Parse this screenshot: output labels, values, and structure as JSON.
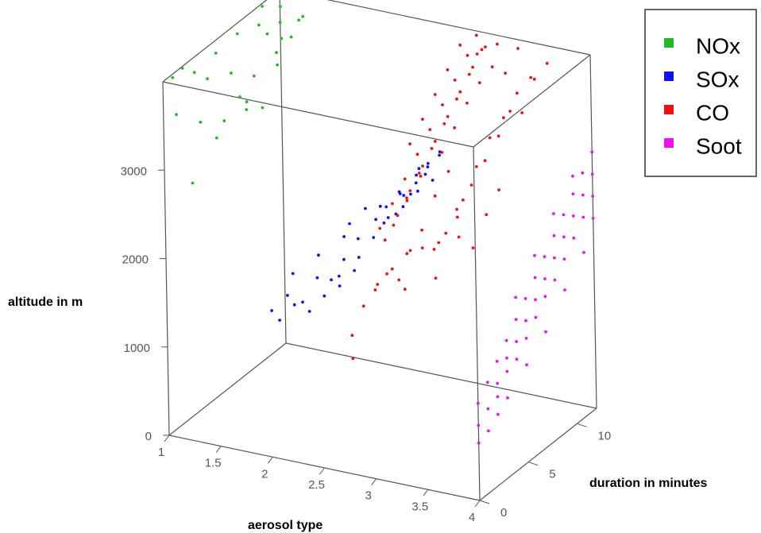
{
  "chart_data": {
    "type": "scatter",
    "projection": "3d",
    "xlabel": "aerosol type",
    "ylabel": "duration in minutes",
    "zlabel": "altitude in m",
    "xlim": [
      1,
      4
    ],
    "ylim": [
      0,
      12
    ],
    "zlim": [
      0,
      4000
    ],
    "x_ticks": [
      "1",
      "1.5",
      "2",
      "2.5",
      "3",
      "3.5",
      "4"
    ],
    "y_ticks": [
      "0",
      "5",
      "10"
    ],
    "z_ticks": [
      "0",
      "1000",
      "2000",
      "3000"
    ],
    "grid": false,
    "legend_position": "top-right",
    "colors": {
      "NOx": "#22bb22",
      "SOx": "#1010ee",
      "CO": "#ee1111",
      "Soot": "#ee11ee"
    },
    "series": [
      {
        "name": "NOx",
        "points": [
          [
            1.0,
            1,
            3960
          ],
          [
            1.0,
            2,
            3980
          ],
          [
            1.02,
            3,
            3850
          ],
          [
            1.04,
            5,
            3900
          ],
          [
            1.06,
            7,
            3950
          ],
          [
            1.08,
            9,
            3880
          ],
          [
            1.1,
            11,
            3920
          ],
          [
            1.02,
            10,
            3990
          ],
          [
            1.05,
            4,
            3700
          ],
          [
            1.09,
            6,
            3600
          ],
          [
            1.12,
            8,
            3400
          ],
          [
            1.15,
            10,
            3500
          ],
          [
            1.18,
            12,
            3700
          ],
          [
            1.03,
            1,
            3550
          ],
          [
            1.07,
            3,
            3300
          ],
          [
            1.11,
            5,
            3150
          ],
          [
            1.14,
            7,
            3200
          ],
          [
            1.16,
            9,
            3800
          ],
          [
            1.2,
            11,
            3600
          ],
          [
            1.01,
            12,
            3450
          ],
          [
            1.04,
            8,
            3000
          ],
          [
            1.08,
            2,
            2700
          ],
          [
            1.13,
            4,
            3050
          ],
          [
            1.17,
            6,
            3350
          ],
          [
            1.19,
            10,
            3850
          ],
          [
            1.22,
            12,
            3750
          ],
          [
            1.06,
            11,
            3250
          ],
          [
            1.1,
            9,
            2950
          ]
        ]
      },
      {
        "name": "SOx",
        "points": [
          [
            1.9,
            2,
            1350
          ],
          [
            1.95,
            3,
            1450
          ],
          [
            2.0,
            4,
            1300
          ],
          [
            2.05,
            5,
            1400
          ],
          [
            2.1,
            6,
            1550
          ],
          [
            1.92,
            1,
            1550
          ],
          [
            1.98,
            2,
            1650
          ],
          [
            2.03,
            3,
            1500
          ],
          [
            2.08,
            4,
            1700
          ],
          [
            2.12,
            5,
            1600
          ],
          [
            2.15,
            6,
            1750
          ],
          [
            1.94,
            3,
            1800
          ],
          [
            2.0,
            5,
            1850
          ],
          [
            2.06,
            7,
            1900
          ],
          [
            2.1,
            8,
            1800
          ],
          [
            2.18,
            9,
            1950
          ],
          [
            2.2,
            7,
            1700
          ],
          [
            2.25,
            8,
            1850
          ],
          [
            2.3,
            9,
            2000
          ],
          [
            2.35,
            10,
            2050
          ],
          [
            2.4,
            11,
            2150
          ],
          [
            2.45,
            12,
            2200
          ],
          [
            2.28,
            10,
            1950
          ],
          [
            2.33,
            11,
            2100
          ],
          [
            2.38,
            12,
            2250
          ],
          [
            2.42,
            9,
            2300
          ],
          [
            2.48,
            10,
            2350
          ],
          [
            2.5,
            11,
            2450
          ],
          [
            2.52,
            12,
            2500
          ],
          [
            2.55,
            8,
            2400
          ],
          [
            2.58,
            9,
            2550
          ],
          [
            2.6,
            10,
            2600
          ],
          [
            2.62,
            11,
            2650
          ],
          [
            2.2,
            5,
            1550
          ],
          [
            2.25,
            6,
            1650
          ],
          [
            2.02,
            8,
            1950
          ],
          [
            2.08,
            9,
            2050
          ],
          [
            2.13,
            10,
            2000
          ],
          [
            2.22,
            11,
            2100
          ],
          [
            2.32,
            12,
            2300
          ],
          [
            2.45,
            7,
            2150
          ],
          [
            2.57,
            6,
            2450
          ]
        ]
      },
      {
        "name": "CO",
        "points": [
          [
            2.6,
            2,
            1350
          ],
          [
            2.62,
            3,
            1600
          ],
          [
            2.64,
            4,
            1700
          ],
          [
            2.66,
            5,
            1800
          ],
          [
            2.68,
            6,
            1650
          ],
          [
            2.7,
            7,
            1900
          ],
          [
            2.72,
            8,
            2050
          ],
          [
            2.74,
            9,
            1750
          ],
          [
            2.76,
            10,
            1850
          ],
          [
            2.78,
            11,
            1950
          ],
          [
            2.6,
            5,
            2300
          ],
          [
            2.63,
            6,
            2500
          ],
          [
            2.66,
            7,
            2700
          ],
          [
            2.69,
            8,
            2900
          ],
          [
            2.72,
            9,
            3100
          ],
          [
            2.75,
            10,
            3300
          ],
          [
            2.78,
            11,
            3500
          ],
          [
            2.81,
            12,
            3700
          ],
          [
            2.62,
            8,
            3000
          ],
          [
            2.65,
            9,
            3200
          ],
          [
            2.68,
            10,
            3400
          ],
          [
            2.71,
            11,
            3600
          ],
          [
            2.74,
            12,
            3800
          ],
          [
            2.77,
            6,
            2600
          ],
          [
            2.8,
            7,
            2800
          ],
          [
            2.83,
            8,
            3000
          ],
          [
            2.86,
            9,
            3200
          ],
          [
            2.89,
            10,
            3400
          ],
          [
            2.92,
            11,
            3600
          ],
          [
            2.95,
            12,
            3800
          ],
          [
            2.84,
            3,
            2400
          ],
          [
            2.87,
            4,
            2600
          ],
          [
            2.9,
            5,
            2800
          ],
          [
            2.93,
            6,
            3000
          ],
          [
            2.96,
            7,
            3200
          ],
          [
            2.99,
            8,
            3400
          ],
          [
            3.02,
            9,
            3600
          ],
          [
            3.05,
            10,
            3800
          ],
          [
            3.08,
            11,
            3950
          ],
          [
            3.1,
            12,
            3900
          ],
          [
            3.12,
            6,
            3200
          ],
          [
            3.15,
            7,
            3400
          ],
          [
            3.18,
            8,
            3600
          ],
          [
            3.21,
            9,
            3750
          ],
          [
            3.24,
            10,
            3850
          ],
          [
            3.27,
            11,
            3700
          ],
          [
            3.3,
            12,
            3900
          ],
          [
            3.02,
            2,
            2700
          ],
          [
            3.06,
            3,
            2900
          ],
          [
            3.1,
            4,
            3100
          ],
          [
            3.14,
            5,
            2800
          ],
          [
            3.18,
            6,
            3000
          ],
          [
            3.22,
            7,
            2600
          ],
          [
            3.26,
            8,
            2900
          ],
          [
            3.3,
            9,
            3150
          ],
          [
            3.34,
            10,
            3300
          ],
          [
            3.38,
            11,
            3500
          ],
          [
            3.42,
            12,
            3600
          ],
          [
            3.35,
            5,
            2700
          ],
          [
            3.4,
            6,
            2900
          ],
          [
            3.44,
            7,
            3100
          ],
          [
            3.48,
            8,
            3300
          ],
          [
            3.5,
            9,
            3500
          ],
          [
            3.52,
            10,
            3400
          ],
          [
            3.55,
            11,
            3700
          ],
          [
            3.58,
            12,
            3800
          ],
          [
            3.46,
            4,
            2500
          ],
          [
            3.5,
            5,
            2300
          ],
          [
            3.54,
            6,
            2600
          ],
          [
            3.57,
            7,
            2800
          ],
          [
            2.95,
            1,
            2100
          ],
          [
            3.0,
            2,
            2200
          ],
          [
            3.05,
            3,
            2300
          ],
          [
            3.12,
            2,
            2000
          ],
          [
            3.2,
            3,
            2400
          ],
          [
            2.7,
            1,
            1200
          ],
          [
            2.9,
            12,
            3950
          ],
          [
            3.0,
            11,
            3850
          ],
          [
            3.36,
            3,
            2500
          ],
          [
            3.42,
            2,
            2200
          ]
        ]
      },
      {
        "name": "Soot",
        "points": [
          [
            4.0,
            0,
            850
          ],
          [
            4.0,
            1,
            950
          ],
          [
            4.0,
            2,
            800
          ],
          [
            4.0,
            0,
            1100
          ],
          [
            4.0,
            1,
            1250
          ],
          [
            4.0,
            2,
            1000
          ],
          [
            4.0,
            3,
            1200
          ],
          [
            4.0,
            2,
            1400
          ],
          [
            4.0,
            3,
            1550
          ],
          [
            4.0,
            4,
            1450
          ],
          [
            4.0,
            4,
            1700
          ],
          [
            4.0,
            5,
            1600
          ],
          [
            4.0,
            5,
            1850
          ],
          [
            4.0,
            6,
            1750
          ],
          [
            4.0,
            6,
            2000
          ],
          [
            4.0,
            7,
            1900
          ],
          [
            4.0,
            7,
            2150
          ],
          [
            4.0,
            8,
            2050
          ],
          [
            4.0,
            8,
            2300
          ],
          [
            4.0,
            9,
            2200
          ],
          [
            4.0,
            9,
            2450
          ],
          [
            4.0,
            10,
            2350
          ],
          [
            4.0,
            10,
            2600
          ],
          [
            4.0,
            11,
            2500
          ],
          [
            4.0,
            11,
            2750
          ],
          [
            4.0,
            12,
            2650
          ],
          [
            4.0,
            12,
            2900
          ],
          [
            4.0,
            3,
            1350
          ],
          [
            4.0,
            4,
            1250
          ],
          [
            4.0,
            5,
            1400
          ],
          [
            4.0,
            6,
            1550
          ],
          [
            4.0,
            7,
            1700
          ],
          [
            4.0,
            8,
            1800
          ],
          [
            4.0,
            9,
            1950
          ],
          [
            4.0,
            10,
            2100
          ],
          [
            4.0,
            11,
            2250
          ],
          [
            4.0,
            12,
            2400
          ],
          [
            4.0,
            1,
            700
          ],
          [
            4.0,
            2,
            1150
          ],
          [
            4.0,
            3,
            900
          ],
          [
            4.0,
            5,
            1100
          ],
          [
            4.0,
            7,
            1300
          ],
          [
            4.0,
            9,
            1600
          ],
          [
            4.0,
            11,
            1850
          ],
          [
            4.0,
            12,
            2150
          ],
          [
            4.0,
            10,
            2800
          ],
          [
            4.0,
            8,
            2550
          ],
          [
            4.0,
            6,
            2250
          ],
          [
            4.0,
            4,
            1950
          ],
          [
            4.0,
            0,
            650
          ]
        ]
      }
    ]
  }
}
